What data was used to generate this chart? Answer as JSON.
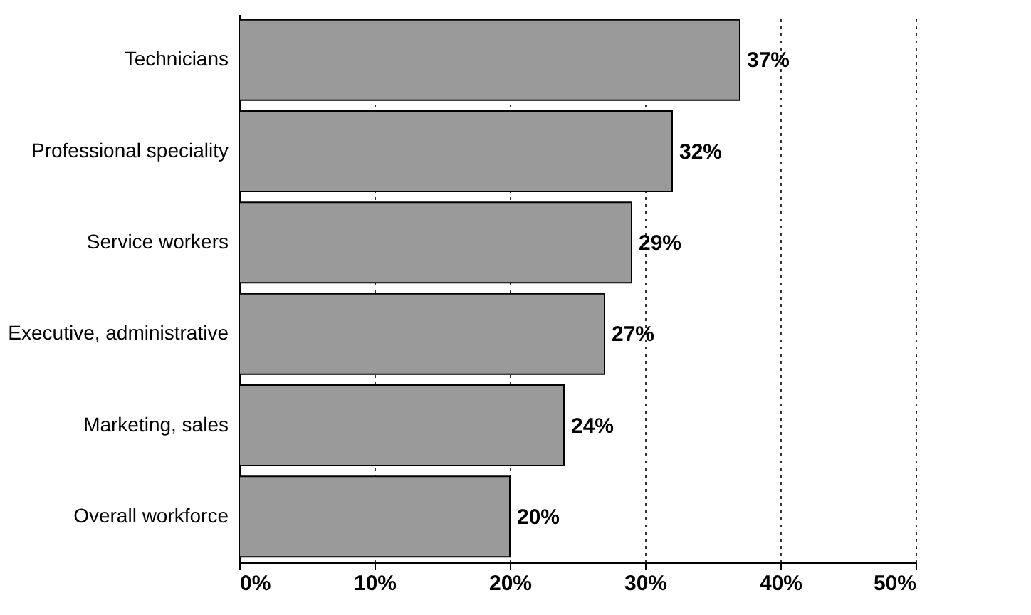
{
  "chart_data": {
    "type": "bar",
    "orientation": "horizontal",
    "categories": [
      "Technicians",
      "Professional speciality",
      "Service workers",
      "Executive, administrative",
      "Marketing, sales",
      "Overall workforce"
    ],
    "values": [
      37,
      32,
      29,
      27,
      24,
      20
    ],
    "value_labels": [
      "37%",
      "32%",
      "29%",
      "27%",
      "24%",
      "20%"
    ],
    "color": "#9a9a9a",
    "xlim": [
      0,
      50
    ],
    "xticks": [
      {
        "value": 0,
        "label": "0%"
      },
      {
        "value": 10,
        "label": "10%"
      },
      {
        "value": 20,
        "label": "20%"
      },
      {
        "value": 30,
        "label": "30%"
      },
      {
        "value": 40,
        "label": "40%"
      },
      {
        "value": 50,
        "label": "50%"
      }
    ],
    "grid": "x"
  }
}
